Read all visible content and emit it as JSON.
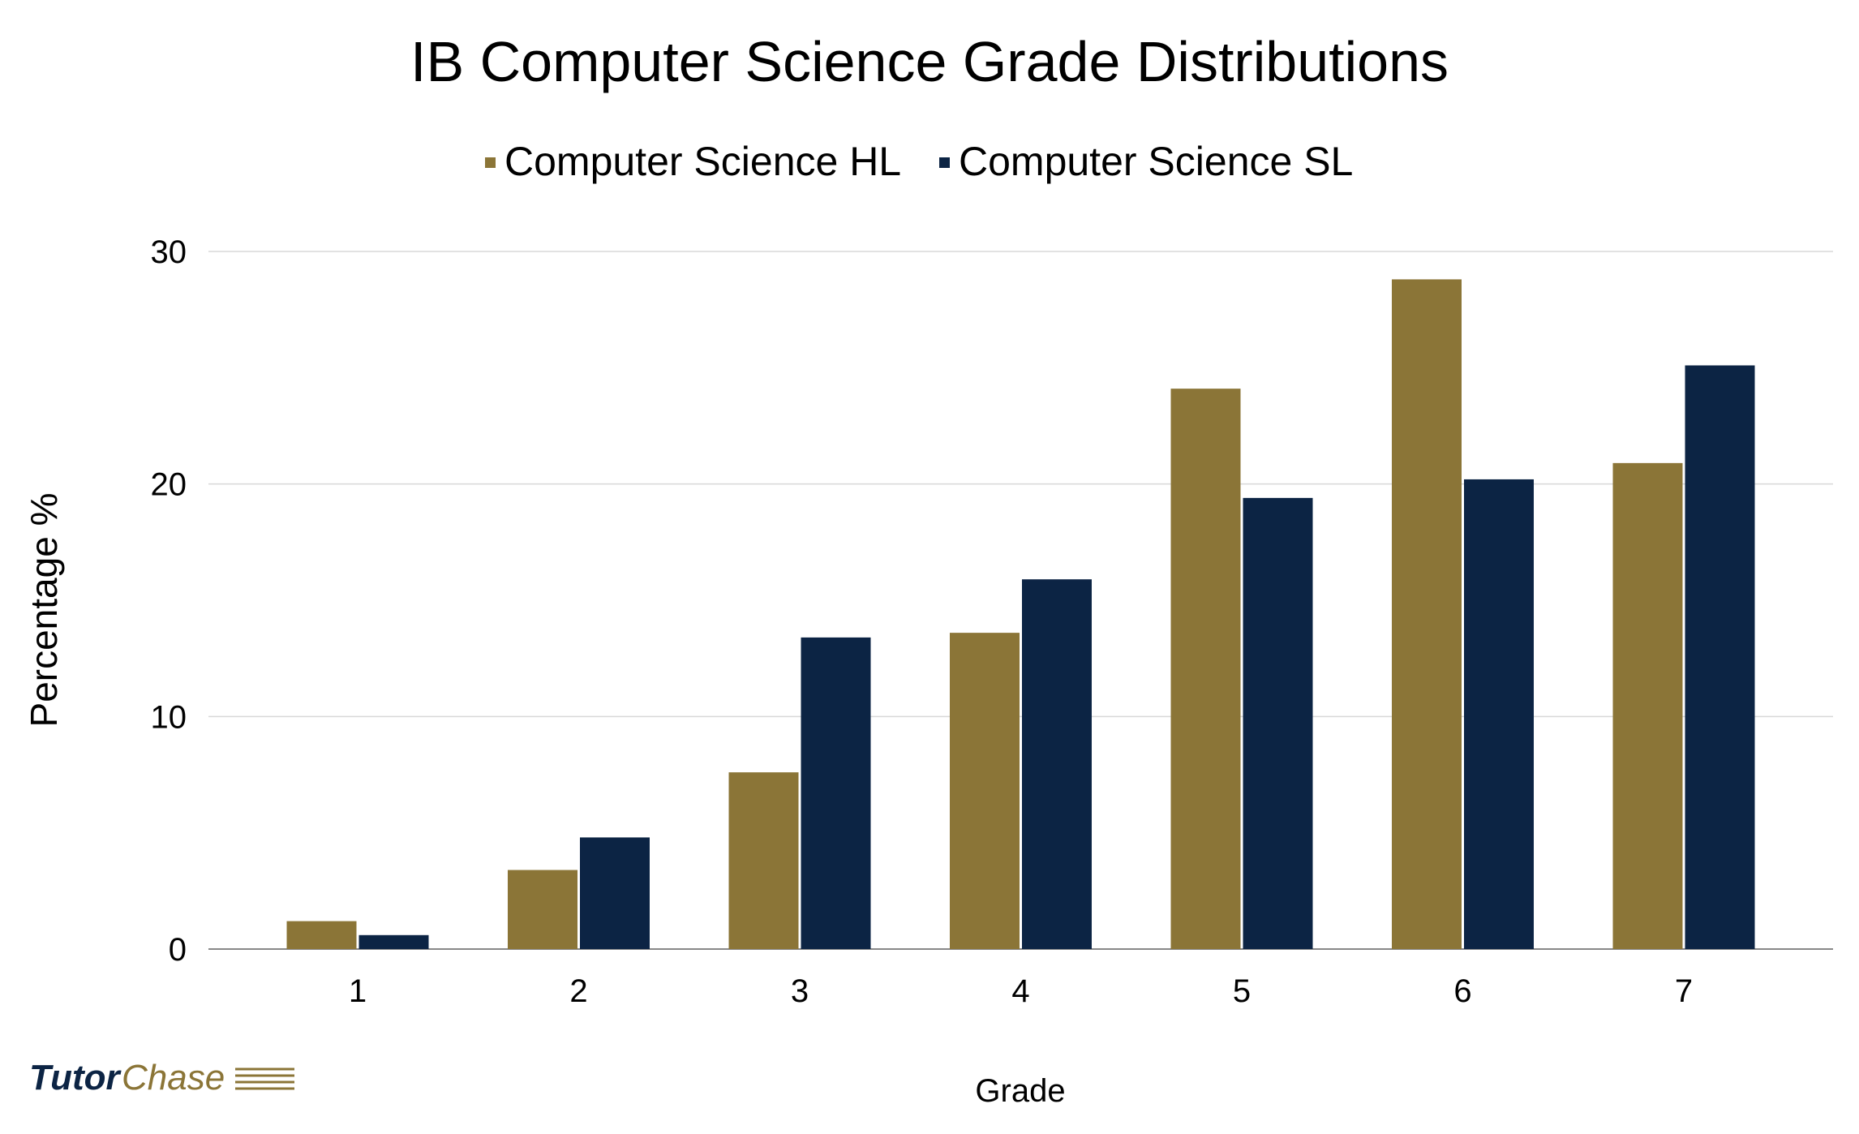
{
  "chart_data": {
    "type": "bar",
    "title": "IB Computer Science Grade Distributions",
    "xlabel": "Grade",
    "ylabel": "Percentage %",
    "categories": [
      "1",
      "2",
      "3",
      "4",
      "5",
      "6",
      "7"
    ],
    "series": [
      {
        "name": "Computer Science HL",
        "color": "#8B7537",
        "values": [
          1.2,
          3.4,
          7.6,
          13.6,
          24.1,
          28.8,
          20.9
        ]
      },
      {
        "name": "Computer Science SL",
        "color": "#0C2444",
        "values": [
          0.6,
          4.8,
          13.4,
          15.9,
          19.4,
          20.2,
          25.1
        ]
      }
    ],
    "yticks": [
      "0",
      "10",
      "20",
      "30"
    ],
    "ylim": [
      0,
      30
    ],
    "grid": true,
    "legend": "top-center"
  },
  "logo": {
    "text_left": "Tutor",
    "text_right": "Chase",
    "color_left": "#0C2444",
    "color_right": "#8B7537"
  }
}
